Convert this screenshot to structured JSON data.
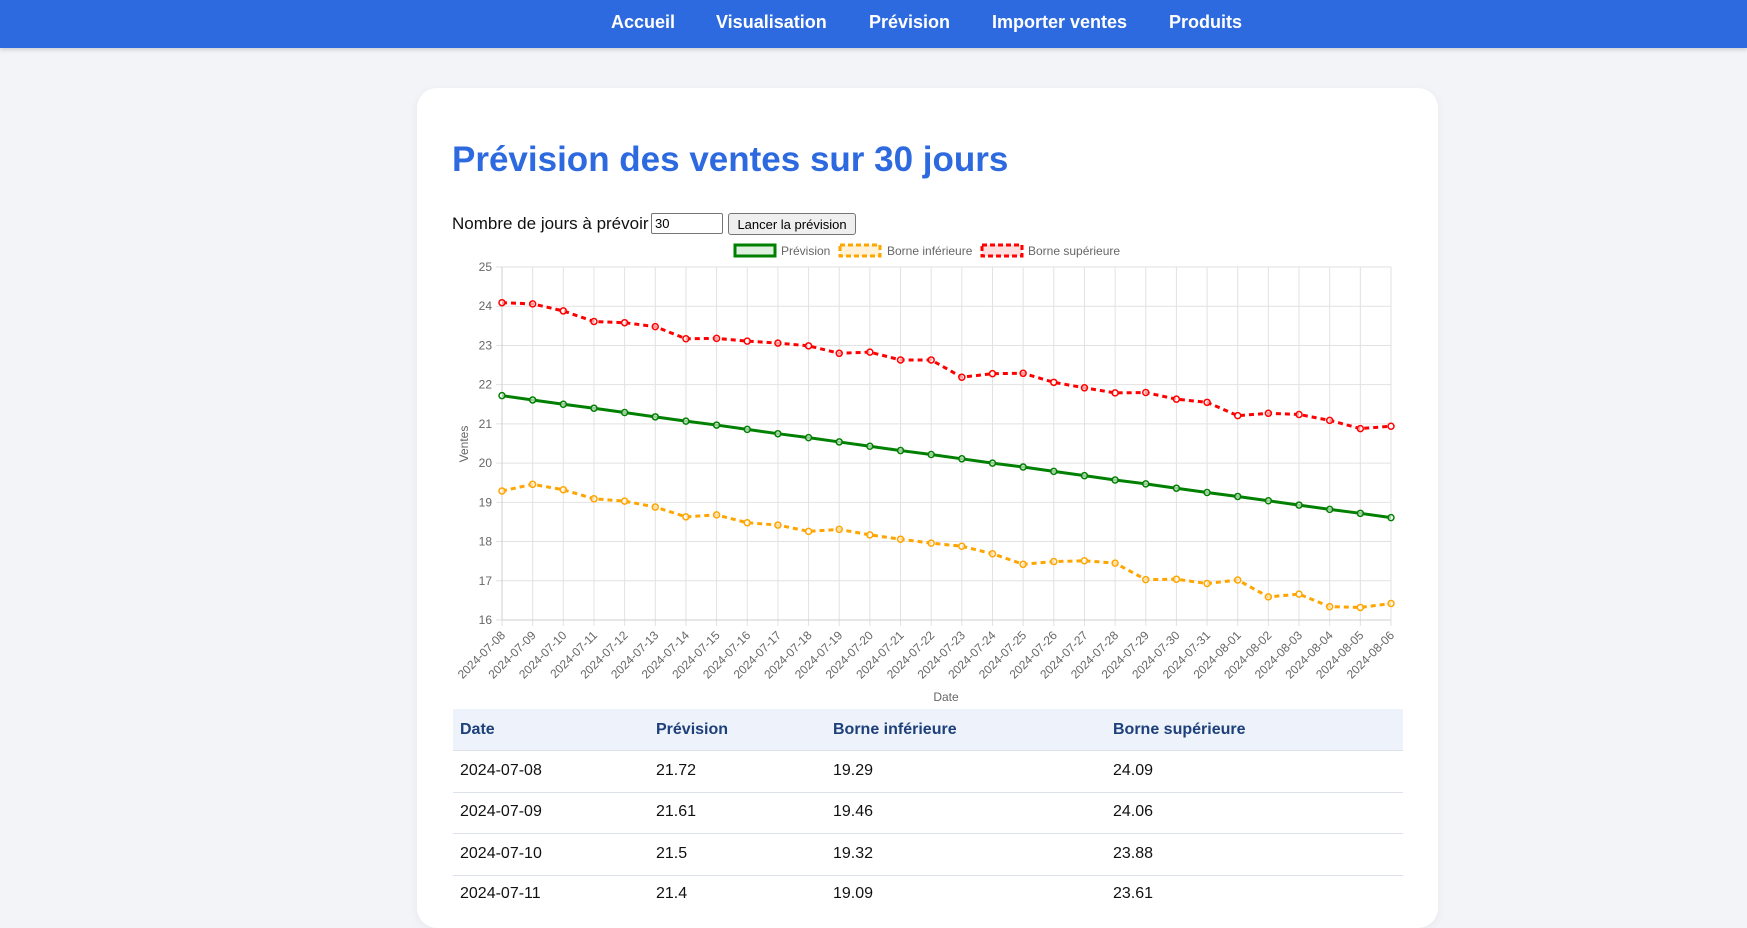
{
  "nav": [
    "Accueil",
    "Visualisation",
    "Prévision",
    "Importer ventes",
    "Produits"
  ],
  "page": {
    "title": "Prévision des ventes sur 30 jours",
    "form_label": "Nombre de jours à prévoir :",
    "days_value": "30",
    "run_label": "Lancer la prévision"
  },
  "colors": {
    "nav_bg": "#2d6ae0",
    "forecast": "#008000",
    "lower": "#ffa500",
    "upper": "#ff0000"
  },
  "chart_data": {
    "type": "line",
    "xlabel": "Date",
    "ylabel": "Ventes",
    "ylim": [
      16,
      25
    ],
    "yticks": [
      16,
      17,
      18,
      19,
      20,
      21,
      22,
      23,
      24,
      25
    ],
    "legend": "top",
    "categories": [
      "2024-07-08",
      "2024-07-09",
      "2024-07-10",
      "2024-07-11",
      "2024-07-12",
      "2024-07-13",
      "2024-07-14",
      "2024-07-15",
      "2024-07-16",
      "2024-07-17",
      "2024-07-18",
      "2024-07-19",
      "2024-07-20",
      "2024-07-21",
      "2024-07-22",
      "2024-07-23",
      "2024-07-24",
      "2024-07-25",
      "2024-07-26",
      "2024-07-27",
      "2024-07-28",
      "2024-07-29",
      "2024-07-30",
      "2024-07-31",
      "2024-08-01",
      "2024-08-02",
      "2024-08-03",
      "2024-08-04",
      "2024-08-05",
      "2024-08-06"
    ],
    "series": [
      {
        "name": "Prévision",
        "style": "solid",
        "values": [
          21.72,
          21.61,
          21.5,
          21.4,
          21.29,
          21.18,
          21.07,
          20.97,
          20.86,
          20.75,
          20.65,
          20.54,
          20.43,
          20.32,
          20.22,
          20.11,
          20.0,
          19.9,
          19.79,
          19.68,
          19.57,
          19.47,
          19.36,
          19.25,
          19.15,
          19.04,
          18.93,
          18.82,
          18.72,
          18.61
        ]
      },
      {
        "name": "Borne inférieure",
        "style": "dashed",
        "values": [
          19.29,
          19.46,
          19.32,
          19.09,
          19.03,
          18.88,
          18.63,
          18.68,
          18.48,
          18.42,
          18.26,
          18.31,
          18.17,
          18.06,
          17.96,
          17.88,
          17.69,
          17.42,
          17.49,
          17.51,
          17.45,
          17.03,
          17.04,
          16.93,
          17.02,
          16.59,
          16.66,
          16.34,
          16.32,
          16.42
        ]
      },
      {
        "name": "Borne supérieure",
        "style": "dashed",
        "values": [
          24.09,
          24.06,
          23.88,
          23.61,
          23.58,
          23.48,
          23.17,
          23.18,
          23.11,
          23.06,
          22.99,
          22.8,
          22.83,
          22.63,
          22.63,
          22.19,
          22.28,
          22.29,
          22.06,
          21.92,
          21.79,
          21.8,
          21.63,
          21.55,
          21.21,
          21.27,
          21.24,
          21.09,
          20.88,
          20.94
        ]
      }
    ]
  },
  "table": {
    "headers": [
      "Date",
      "Prévision",
      "Borne inférieure",
      "Borne supérieure"
    ],
    "rows": [
      [
        "2024-07-08",
        "21.72",
        "19.29",
        "24.09"
      ],
      [
        "2024-07-09",
        "21.61",
        "19.46",
        "24.06"
      ],
      [
        "2024-07-10",
        "21.5",
        "19.32",
        "23.88"
      ],
      [
        "2024-07-11",
        "21.4",
        "19.09",
        "23.61"
      ]
    ]
  }
}
